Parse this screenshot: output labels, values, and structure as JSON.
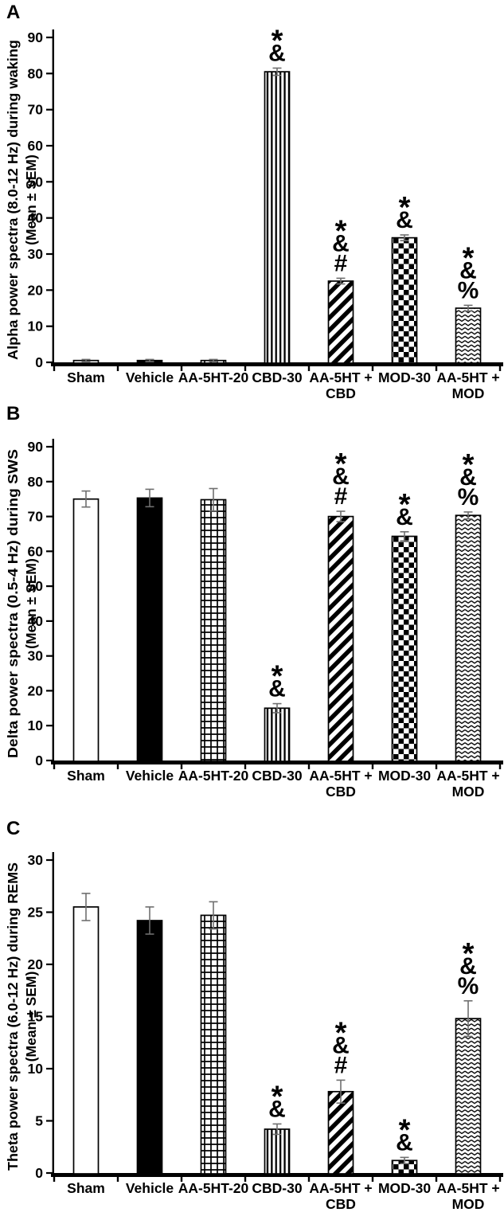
{
  "chart_data": [
    {
      "type": "bar",
      "panel_label": "A",
      "ylabel": "Alpha power spectra (8.0-12 Hz) during waking",
      "ylabel_line2": "(Mean ± SEM)",
      "categories": [
        "Sham",
        "Vehicle",
        "AA-5HT-20",
        "CBD-30",
        "AA-5HT + CBD",
        "MOD-30",
        "AA-5HT + MOD"
      ],
      "x_tick_lines": [
        [
          "Sham"
        ],
        [
          "Vehicle"
        ],
        [
          "AA-5HT-20"
        ],
        [
          "CBD-30"
        ],
        [
          "AA-5HT +",
          "CBD"
        ],
        [
          "MOD-30"
        ],
        [
          "AA-5HT +",
          "MOD"
        ]
      ],
      "values": [
        0.5,
        0.5,
        0.5,
        80.5,
        22.5,
        34.5,
        15.0
      ],
      "sem": [
        0.3,
        0.3,
        0.3,
        1.0,
        0.8,
        0.8,
        0.8
      ],
      "significance": [
        [],
        [],
        [],
        [
          "*",
          "&"
        ],
        [
          "*",
          "&",
          "#"
        ],
        [
          "*",
          "&"
        ],
        [
          "*",
          "&",
          "%"
        ]
      ],
      "bar_styles": [
        "plain-white",
        "solid-black",
        "grid",
        "vertical-stripes",
        "diagonal-stripes",
        "checkerboard",
        "zigzag"
      ],
      "ylim": [
        0,
        90
      ],
      "ytick_step": 10,
      "grid": false,
      "legend_position": "none"
    },
    {
      "type": "bar",
      "panel_label": "B",
      "ylabel": "Delta power spectra (0.5-4 Hz) during SWS",
      "ylabel_line2": "(Mean ± SEM)",
      "categories": [
        "Sham",
        "Vehicle",
        "AA-5HT-20",
        "CBD-30",
        "AA-5HT + CBD",
        "MOD-30",
        "AA-5HT + MOD"
      ],
      "x_tick_lines": [
        [
          "Sham"
        ],
        [
          "Vehicle"
        ],
        [
          "AA-5HT-20"
        ],
        [
          "CBD-30"
        ],
        [
          "AA-5HT +",
          "CBD"
        ],
        [
          "MOD-30"
        ],
        [
          "AA-5HT +",
          "MOD"
        ]
      ],
      "values": [
        75.0,
        75.3,
        74.8,
        15.0,
        70.0,
        64.3,
        70.3
      ],
      "sem": [
        2.3,
        2.5,
        3.2,
        1.3,
        1.5,
        1.3,
        1.0
      ],
      "significance": [
        [],
        [],
        [],
        [
          "*",
          "&"
        ],
        [
          "*",
          "&",
          "#"
        ],
        [
          "*",
          "&"
        ],
        [
          "*",
          "&",
          "%"
        ]
      ],
      "bar_styles": [
        "plain-white",
        "solid-black",
        "grid",
        "vertical-stripes",
        "diagonal-stripes",
        "checkerboard",
        "zigzag"
      ],
      "ylim": [
        0,
        90
      ],
      "ytick_step": 10,
      "grid": false,
      "legend_position": "none"
    },
    {
      "type": "bar",
      "panel_label": "C",
      "ylabel": "Theta power spectra (6.0-12 Hz) during REMS",
      "ylabel_line2": "(Mean ± SEM)",
      "categories": [
        "Sham",
        "Vehicle",
        "AA-5HT-20",
        "CBD-30",
        "AA-5HT + CBD",
        "MOD-30",
        "AA-5HT + MOD"
      ],
      "x_tick_lines": [
        [
          "Sham"
        ],
        [
          "Vehicle"
        ],
        [
          "AA-5HT-20"
        ],
        [
          "CBD-30"
        ],
        [
          "AA-5HT +",
          "CBD"
        ],
        [
          "MOD-30"
        ],
        [
          "AA-5HT +",
          "MOD"
        ]
      ],
      "values": [
        25.5,
        24.2,
        24.7,
        4.2,
        7.8,
        1.2,
        14.8
      ],
      "sem": [
        1.3,
        1.3,
        1.3,
        0.5,
        1.1,
        0.3,
        1.7
      ],
      "significance": [
        [],
        [],
        [],
        [
          "*",
          "&"
        ],
        [
          "*",
          "&",
          "#"
        ],
        [
          "*",
          "&"
        ],
        [
          "*",
          "&",
          "%"
        ]
      ],
      "bar_styles": [
        "plain-white",
        "solid-black",
        "grid",
        "vertical-stripes",
        "diagonal-stripes",
        "checkerboard",
        "zigzag"
      ],
      "ylim": [
        0,
        30
      ],
      "ytick_step": 5,
      "grid": false,
      "legend_position": "none"
    }
  ],
  "colors": {
    "ink": "#000000",
    "background": "#ffffff",
    "error_bar": "#6f6f6f"
  }
}
